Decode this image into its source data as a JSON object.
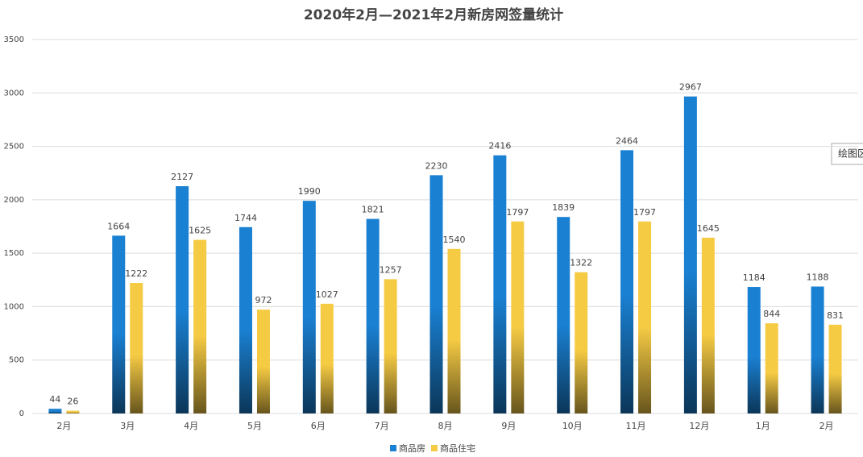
{
  "chart_data": {
    "type": "bar",
    "title": "2020年2月—2021年2月新房网签量统计",
    "categories": [
      "2月",
      "3月",
      "4月",
      "5月",
      "6月",
      "7月",
      "8月",
      "9月",
      "10月",
      "11月",
      "12月",
      "1月",
      "2月"
    ],
    "series": [
      {
        "name": "商品房",
        "color": "#1a80d2",
        "values": [
          44,
          1664,
          2127,
          1744,
          1990,
          1821,
          2230,
          2416,
          1839,
          2464,
          2967,
          1184,
          1188
        ]
      },
      {
        "name": "商品住宅",
        "color": "#f6cb44",
        "values": [
          26,
          1222,
          1625,
          972,
          1027,
          1257,
          1540,
          1797,
          1322,
          1797,
          1645,
          844,
          831
        ]
      }
    ],
    "ylim": [
      0,
      3500
    ],
    "yticks": [
      0,
      500,
      1000,
      1500,
      2000,
      2500,
      3000,
      3500
    ],
    "grid": true,
    "legend": "bottom",
    "tooltip": "绘图区"
  }
}
